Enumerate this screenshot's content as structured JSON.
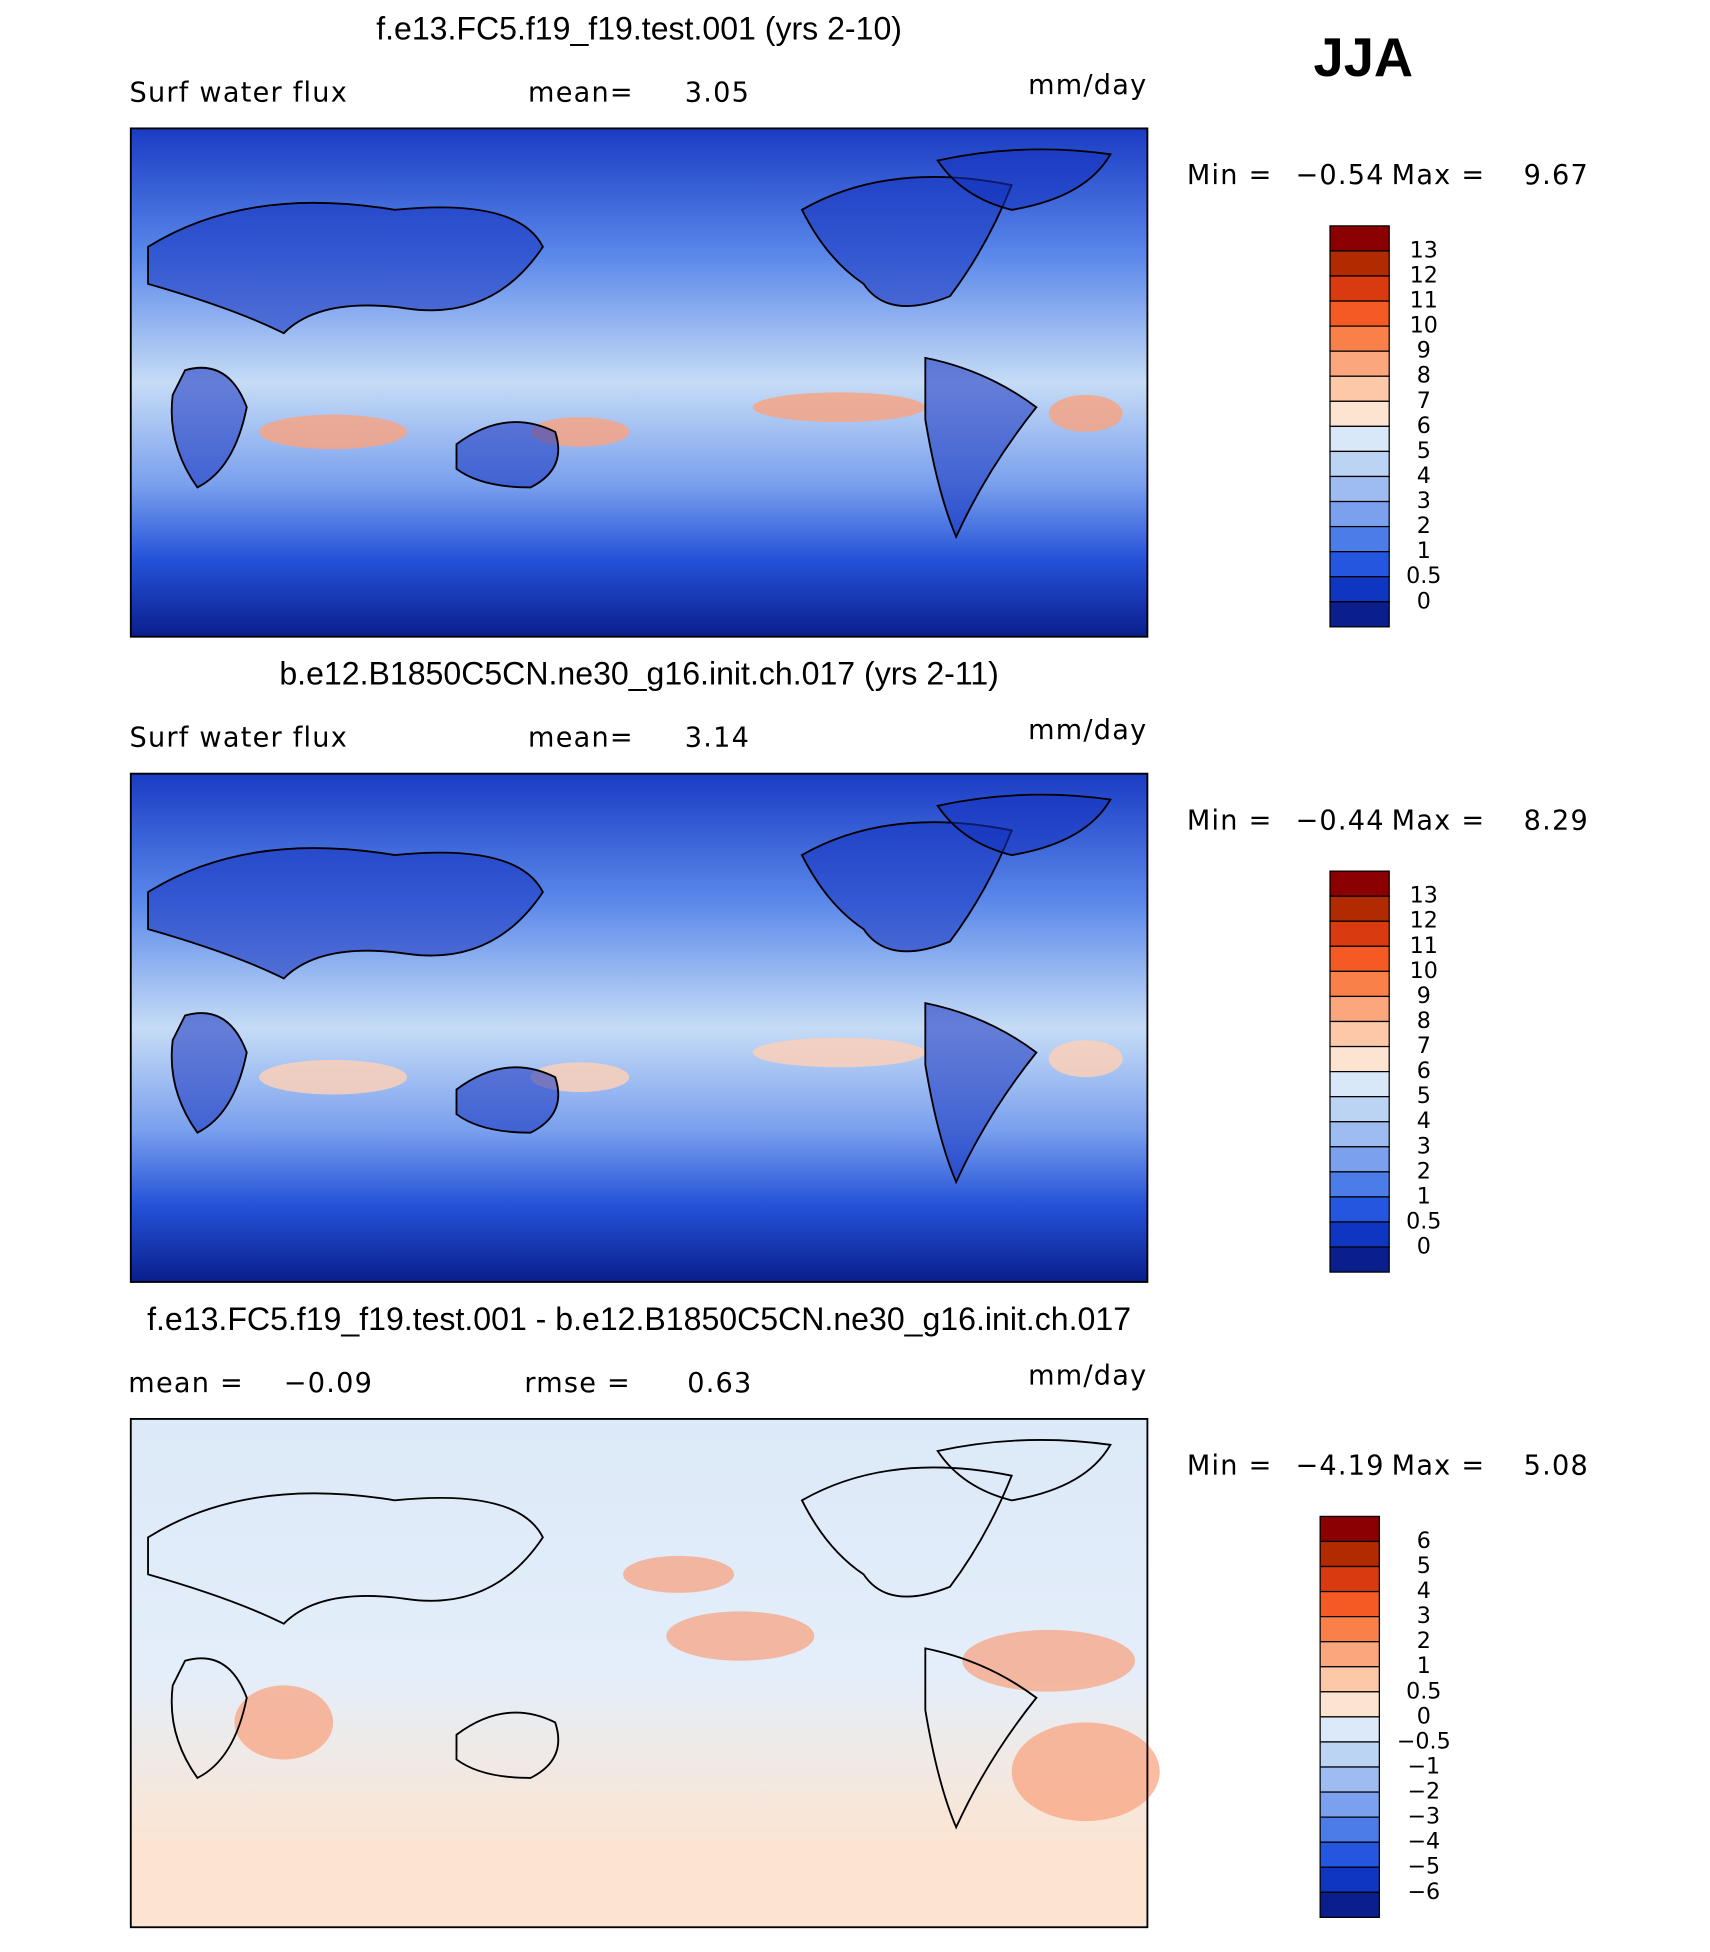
{
  "season": "JJA",
  "panels": [
    {
      "title": "f.e13.FC5.f19_f19.test.001 (yrs 2-10)",
      "variable": "Surf water flux",
      "stat1_label": "mean=",
      "stat1": "3.05",
      "units": "mm/day",
      "min_label": "Min =",
      "min": "−0.54",
      "max_label": "Max =",
      "max": "9.67",
      "colorbar_labels": [
        "13",
        "12",
        "11",
        "10",
        "9",
        "8",
        "7",
        "6",
        "5",
        "4",
        "3",
        "2",
        "1",
        "0.5",
        "0"
      ],
      "colorbar_colors": [
        "#8b0000",
        "#b22a00",
        "#d93a10",
        "#f65a24",
        "#f98048",
        "#fca67e",
        "#fdc8a8",
        "#fde4d0",
        "#d8e8f8",
        "#bcd4f4",
        "#9ebcf2",
        "#7aa0ee",
        "#4c7ce8",
        "#2456e0",
        "#0f36c0",
        "#0a1e8c"
      ]
    },
    {
      "title": "b.e12.B1850C5CN.ne30_g16.init.ch.017 (yrs 2-11)",
      "variable": "Surf water flux",
      "stat1_label": "mean=",
      "stat1": "3.14",
      "units": "mm/day",
      "min_label": "Min =",
      "min": "−0.44",
      "max_label": "Max =",
      "max": "8.29",
      "colorbar_labels": [
        "13",
        "12",
        "11",
        "10",
        "9",
        "8",
        "7",
        "6",
        "5",
        "4",
        "3",
        "2",
        "1",
        "0.5",
        "0"
      ],
      "colorbar_colors": [
        "#8b0000",
        "#b22a00",
        "#d93a10",
        "#f65a24",
        "#f98048",
        "#fca67e",
        "#fdc8a8",
        "#fde4d0",
        "#d8e8f8",
        "#bcd4f4",
        "#9ebcf2",
        "#7aa0ee",
        "#4c7ce8",
        "#2456e0",
        "#0f36c0",
        "#0a1e8c"
      ]
    },
    {
      "title": "f.e13.FC5.f19_f19.test.001 - b.e12.B1850C5CN.ne30_g16.init.ch.017",
      "stat1_label": "mean =",
      "stat1": "−0.09",
      "stat2_label": "rmse =",
      "stat2": "0.63",
      "units": "mm/day",
      "min_label": "Min =",
      "min": "−4.19",
      "max_label": "Max =",
      "max": "5.08",
      "colorbar_labels": [
        "6",
        "5",
        "4",
        "3",
        "2",
        "1",
        "0.5",
        "0",
        "−0.5",
        "−1",
        "−2",
        "−3",
        "−4",
        "−5",
        "−6"
      ],
      "colorbar_colors": [
        "#8b0000",
        "#b22a00",
        "#d93a10",
        "#f65a24",
        "#f98048",
        "#fca67e",
        "#fdc8a8",
        "#fde4d0",
        "#dce9f8",
        "#bcd4f4",
        "#9ebcf2",
        "#7aa0ee",
        "#4c7ce8",
        "#2456e0",
        "#0f36c0",
        "#0a1e8c"
      ]
    }
  ]
}
